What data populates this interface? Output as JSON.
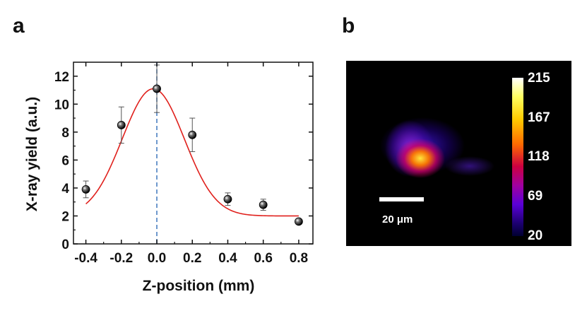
{
  "panels": {
    "a_label": "a",
    "b_label": "b"
  },
  "chart_data": {
    "type": "scatter",
    "xlabel": "Z-position (mm)",
    "ylabel": "X-ray yield (a.u.)",
    "xlim": [
      -0.47,
      0.88
    ],
    "ylim": [
      0,
      13
    ],
    "xticks": [
      "-0.4",
      "-0.2",
      "0.0",
      "0.2",
      "0.4",
      "0.6",
      "0.8"
    ],
    "yticks": [
      "0",
      "2",
      "4",
      "6",
      "8",
      "10",
      "12"
    ],
    "points": [
      {
        "x": -0.4,
        "y": 3.9,
        "err": 0.6
      },
      {
        "x": -0.2,
        "y": 8.5,
        "err": 1.3
      },
      {
        "x": 0.0,
        "y": 11.1,
        "err": 1.7
      },
      {
        "x": 0.2,
        "y": 7.8,
        "err": 1.2
      },
      {
        "x": 0.4,
        "y": 3.2,
        "err": 0.45
      },
      {
        "x": 0.6,
        "y": 2.8,
        "err": 0.4
      },
      {
        "x": 0.8,
        "y": 1.6,
        "err": 0.15
      }
    ],
    "fit": {
      "type": "gaussian",
      "baseline": 2.0,
      "amplitude": 9.1,
      "center": -0.02,
      "sigma": 0.175,
      "color": "#e0201c"
    },
    "reference_line": {
      "x": 0.0,
      "style": "dashed",
      "color": "#4a7fc1"
    }
  },
  "heatmap": {
    "scale_label": "20 μm",
    "colorbar_ticks": [
      "215",
      "167",
      "118",
      "69",
      "20"
    ]
  }
}
